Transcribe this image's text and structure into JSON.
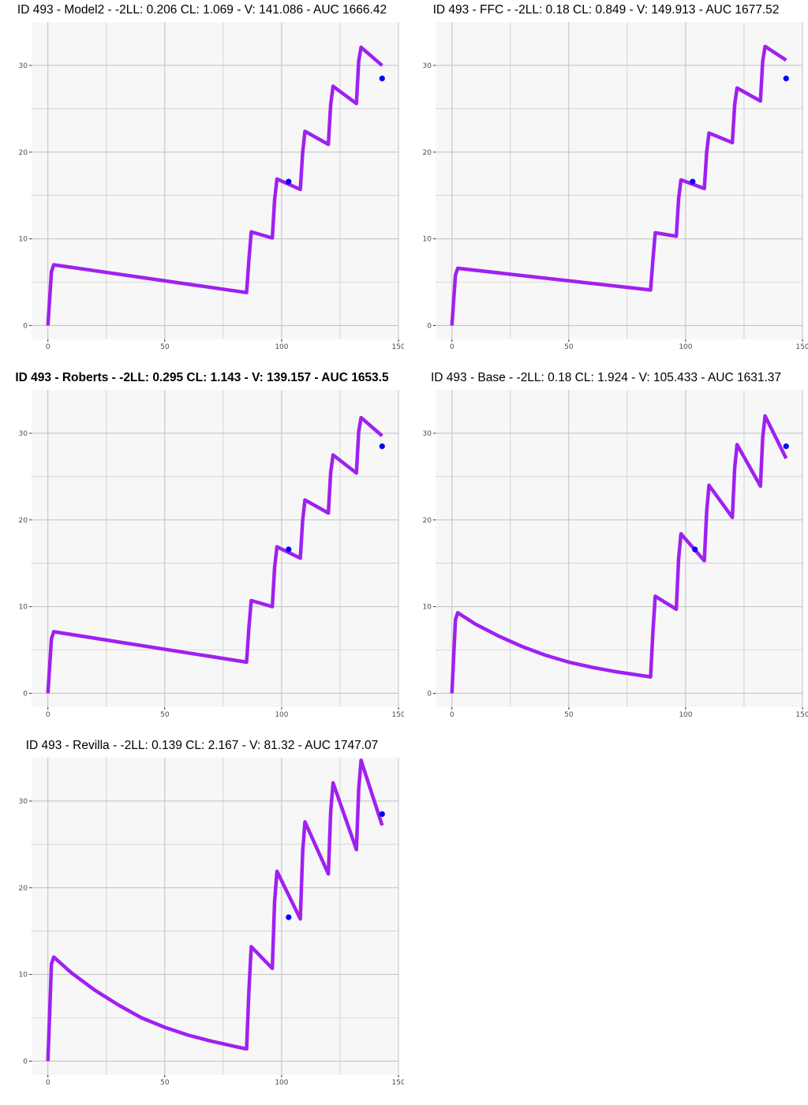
{
  "colors": {
    "line": "#a020f0",
    "point": "#0000ff",
    "panel_bg": "#f7f7f7",
    "grid": "#c0c0c0"
  },
  "chart_data": [
    {
      "type": "line",
      "title": "ID 493 - Model2 - -2LL: 0.206 CL: 1.069 - V: 141.086 - AUC 1666.42",
      "title_bold": false,
      "xlim": [
        -7,
        150
      ],
      "ylim": [
        -1.6,
        35
      ],
      "xticks": [
        0,
        50,
        100,
        150
      ],
      "yticks": [
        0,
        10,
        20,
        30
      ],
      "grid": true,
      "series": [
        {
          "kind": "line",
          "x": [
            0,
            1.5,
            2.5,
            85,
            86,
            87,
            96,
            97,
            98,
            108,
            109,
            110,
            120,
            121,
            122,
            132,
            133,
            134,
            143
          ],
          "y": [
            0,
            6.2,
            7.0,
            3.8,
            7.5,
            10.8,
            10.1,
            14.5,
            16.9,
            15.7,
            20.0,
            22.4,
            20.9,
            25.5,
            27.6,
            25.6,
            30.5,
            32.1,
            30.0
          ]
        },
        {
          "kind": "points",
          "x": [
            103,
            143
          ],
          "y": [
            16.6,
            28.5
          ]
        }
      ]
    },
    {
      "type": "line",
      "title": "ID 493 - FFC - -2LL: 0.18 CL: 0.849 - V: 149.913 - AUC 1677.52",
      "title_bold": false,
      "xlim": [
        -7,
        150
      ],
      "ylim": [
        -1.6,
        35
      ],
      "xticks": [
        0,
        50,
        100,
        150
      ],
      "yticks": [
        0,
        10,
        20,
        30
      ],
      "grid": true,
      "series": [
        {
          "kind": "line",
          "x": [
            0,
            1.5,
            2.5,
            85,
            86,
            87,
            96,
            97,
            98,
            108,
            109,
            110,
            120,
            121,
            122,
            132,
            133,
            134,
            143
          ],
          "y": [
            0,
            5.8,
            6.6,
            4.1,
            7.5,
            10.7,
            10.3,
            14.6,
            16.8,
            15.8,
            20.0,
            22.2,
            21.1,
            25.5,
            27.4,
            25.9,
            30.5,
            32.2,
            30.6
          ]
        },
        {
          "kind": "points",
          "x": [
            103,
            143
          ],
          "y": [
            16.6,
            28.5
          ]
        }
      ]
    },
    {
      "type": "line",
      "title": "ID 493 - Roberts - -2LL: 0.295 CL: 1.143 - V: 139.157 - AUC 1653.5",
      "title_bold": true,
      "xlim": [
        -7,
        150
      ],
      "ylim": [
        -1.6,
        35
      ],
      "xticks": [
        0,
        50,
        100,
        150
      ],
      "yticks": [
        0,
        10,
        20,
        30
      ],
      "grid": true,
      "series": [
        {
          "kind": "line",
          "x": [
            0,
            1.5,
            2.5,
            85,
            86,
            87,
            96,
            97,
            98,
            108,
            109,
            110,
            120,
            121,
            122,
            132,
            133,
            134,
            143
          ],
          "y": [
            0,
            6.3,
            7.1,
            3.6,
            7.5,
            10.7,
            10.0,
            14.5,
            16.9,
            15.6,
            20.0,
            22.3,
            20.8,
            25.5,
            27.5,
            25.4,
            30.2,
            31.8,
            29.7
          ]
        },
        {
          "kind": "points",
          "x": [
            103,
            143
          ],
          "y": [
            16.6,
            28.5
          ]
        }
      ]
    },
    {
      "type": "line",
      "title": "ID 493 - Base - -2LL: 0.18 CL: 1.924 - V: 105.433 - AUC 1631.37",
      "title_bold": false,
      "xlim": [
        -7,
        150
      ],
      "ylim": [
        -1.6,
        35
      ],
      "xticks": [
        0,
        50,
        100,
        150
      ],
      "yticks": [
        0,
        10,
        20,
        30
      ],
      "grid": true,
      "series": [
        {
          "kind": "line",
          "x": [
            0,
            1.5,
            2.5,
            10,
            20,
            30,
            40,
            50,
            60,
            70,
            80,
            85,
            86,
            87,
            96,
            97,
            98,
            108,
            109,
            110,
            120,
            121,
            122,
            132,
            133,
            134,
            143
          ],
          "y": [
            0,
            8.5,
            9.3,
            8.0,
            6.6,
            5.4,
            4.4,
            3.6,
            3.0,
            2.5,
            2.1,
            1.9,
            7.0,
            11.2,
            9.7,
            15.5,
            18.4,
            15.3,
            21.0,
            24.0,
            20.3,
            26.0,
            28.7,
            23.9,
            29.5,
            32.0,
            27.1
          ]
        },
        {
          "kind": "points",
          "x": [
            104,
            143
          ],
          "y": [
            16.6,
            28.5
          ]
        }
      ]
    },
    {
      "type": "line",
      "title": "ID 493 - Revilla - -2LL: 0.139 CL: 2.167 - V: 81.32 - AUC 1747.07",
      "title_bold": false,
      "xlim": [
        -7,
        150
      ],
      "ylim": [
        -1.6,
        35
      ],
      "xticks": [
        0,
        50,
        100,
        150
      ],
      "yticks": [
        0,
        10,
        20,
        30
      ],
      "grid": true,
      "series": [
        {
          "kind": "line",
          "x": [
            0,
            1.5,
            2.5,
            10,
            20,
            30,
            40,
            50,
            60,
            70,
            80,
            85,
            86,
            87,
            96,
            97,
            98,
            108,
            109,
            110,
            120,
            121,
            122,
            132,
            133,
            134,
            143
          ],
          "y": [
            0,
            11.2,
            12.0,
            10.2,
            8.2,
            6.5,
            5.0,
            3.9,
            3.0,
            2.3,
            1.7,
            1.4,
            8.0,
            13.2,
            10.7,
            18.4,
            21.9,
            16.4,
            24.2,
            27.6,
            21.6,
            28.8,
            32.1,
            24.4,
            31.4,
            34.7,
            27.2
          ]
        },
        {
          "kind": "points",
          "x": [
            103,
            143
          ],
          "y": [
            16.6,
            28.5
          ]
        }
      ]
    }
  ]
}
